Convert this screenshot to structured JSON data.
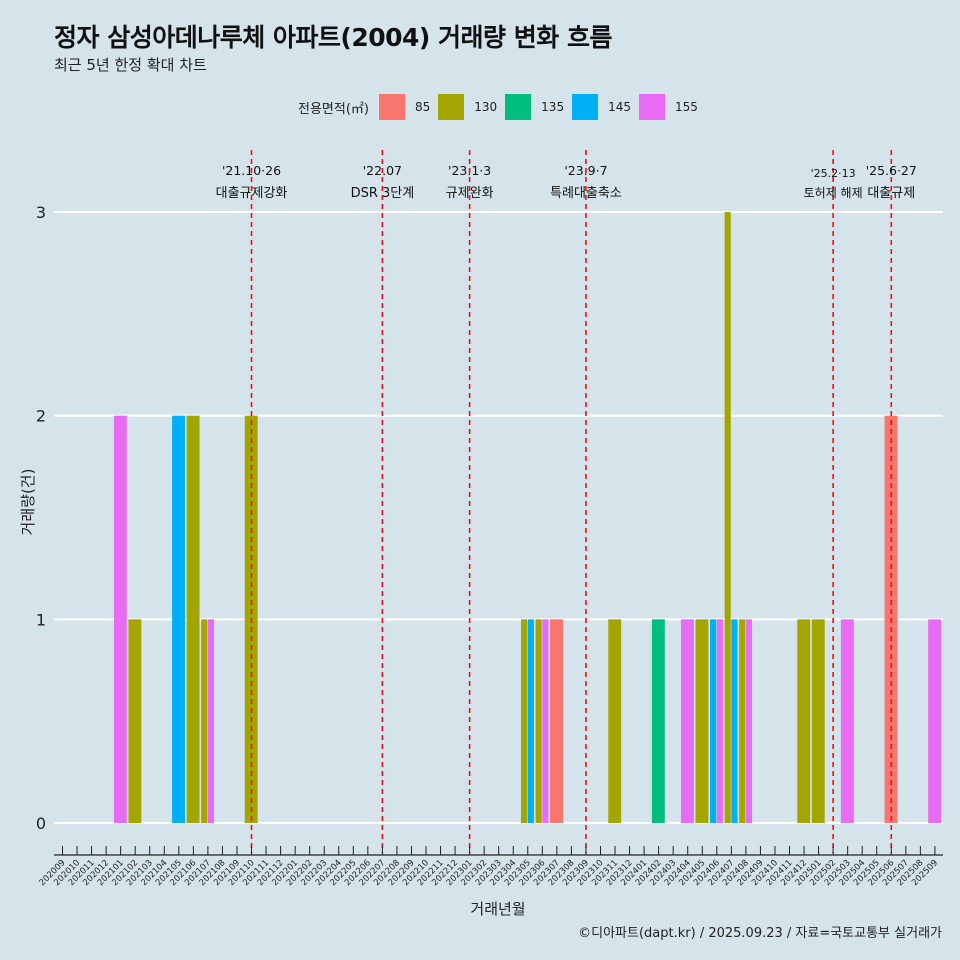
{
  "header": {
    "title": "정자 삼성아데나루체 아파트(2004) 거래량 변화 흐름",
    "subtitle": "최근 5년 한정 확대 차트"
  },
  "legend": {
    "title": "전용면적(㎡)",
    "items": [
      {
        "label": "85",
        "color": "#f8766d"
      },
      {
        "label": "130",
        "color": "#a3a500"
      },
      {
        "label": "135",
        "color": "#00bf7d"
      },
      {
        "label": "145",
        "color": "#00b0f6"
      },
      {
        "label": "155",
        "color": "#e76bf3"
      }
    ]
  },
  "caption": "©디아파트(dapt.kr) / 2025.09.23 / 자료=국토교통부 실거래가",
  "chart_data": {
    "type": "bar",
    "title": "정자 삼성아데나루체 아파트(2004) 거래량 변화 흐름",
    "subtitle": "최근 5년 한정 확대 차트",
    "xlabel": "거래년월",
    "ylabel": "거래량(건)",
    "ylim": [
      0,
      3
    ],
    "yticks": [
      0,
      1,
      2,
      3
    ],
    "grid": "horizontal",
    "legend_position": "top",
    "categories": [
      "202009",
      "202010",
      "202011",
      "202012",
      "202101",
      "202102",
      "202103",
      "202104",
      "202105",
      "202106",
      "202107",
      "202108",
      "202109",
      "202110",
      "202111",
      "202112",
      "202201",
      "202202",
      "202203",
      "202204",
      "202205",
      "202206",
      "202207",
      "202208",
      "202209",
      "202210",
      "202211",
      "202212",
      "202301",
      "202302",
      "202303",
      "202304",
      "202305",
      "202306",
      "202307",
      "202308",
      "202309",
      "202310",
      "202311",
      "202312",
      "202401",
      "202402",
      "202403",
      "202404",
      "202405",
      "202406",
      "202407",
      "202408",
      "202409",
      "202410",
      "202411",
      "202412",
      "202501",
      "202502",
      "202503",
      "202504",
      "202505",
      "202506",
      "202507",
      "202508",
      "202509"
    ],
    "bars": [
      {
        "month": "202101",
        "area": "155",
        "value": 2
      },
      {
        "month": "202102",
        "area": "130",
        "value": 1
      },
      {
        "month": "202105",
        "area": "145",
        "value": 2
      },
      {
        "month": "202106",
        "area": "130",
        "value": 2
      },
      {
        "month": "202107",
        "area": "130",
        "value": 1
      },
      {
        "month": "202107",
        "area": "155",
        "value": 1
      },
      {
        "month": "202110",
        "area": "130",
        "value": 2
      },
      {
        "month": "202305",
        "area": "130",
        "value": 1
      },
      {
        "month": "202305",
        "area": "145",
        "value": 1
      },
      {
        "month": "202306",
        "area": "130",
        "value": 1
      },
      {
        "month": "202306",
        "area": "155",
        "value": 1
      },
      {
        "month": "202307",
        "area": "85",
        "value": 1
      },
      {
        "month": "202311",
        "area": "130",
        "value": 1
      },
      {
        "month": "202402",
        "area": "135",
        "value": 1
      },
      {
        "month": "202404",
        "area": "155",
        "value": 1
      },
      {
        "month": "202405",
        "area": "130",
        "value": 1
      },
      {
        "month": "202406",
        "area": "145",
        "value": 1
      },
      {
        "month": "202406",
        "area": "155",
        "value": 1
      },
      {
        "month": "202407",
        "area": "130",
        "value": 3
      },
      {
        "month": "202407",
        "area": "145",
        "value": 1
      },
      {
        "month": "202408",
        "area": "130",
        "value": 1
      },
      {
        "month": "202408",
        "area": "155",
        "value": 1
      },
      {
        "month": "202412",
        "area": "130",
        "value": 1
      },
      {
        "month": "202501",
        "area": "130",
        "value": 1
      },
      {
        "month": "202503",
        "area": "155",
        "value": 1
      },
      {
        "month": "202506",
        "area": "85",
        "value": 2
      },
      {
        "month": "202509",
        "area": "155",
        "value": 1
      }
    ],
    "events": [
      {
        "month": "202110",
        "date": "'21.10·26",
        "label": "대출규제강화"
      },
      {
        "month": "202207",
        "date": "'22.07",
        "label": "DSR 3단계"
      },
      {
        "month": "202301",
        "date": "'23.1·3",
        "label": "규제완화"
      },
      {
        "month": "202309",
        "date": "'23.9·7",
        "label": "특례대출축소"
      },
      {
        "month": "202502",
        "date": "'25.2·13",
        "label": "토허제 해제"
      },
      {
        "month": "202506",
        "date": "'25.6·27",
        "label": "대출규제"
      }
    ]
  }
}
